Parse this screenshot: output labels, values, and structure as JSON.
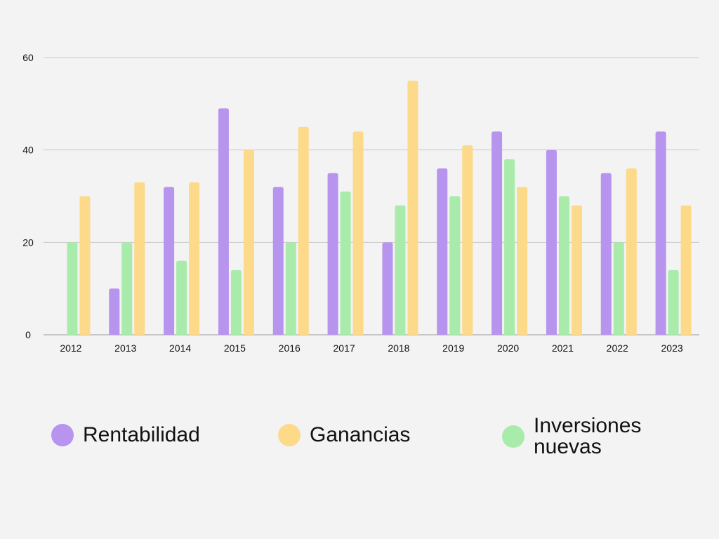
{
  "chart_data": {
    "type": "bar",
    "categories": [
      "2012",
      "2013",
      "2014",
      "2015",
      "2016",
      "2017",
      "2018",
      "2019",
      "2020",
      "2021",
      "2022",
      "2023"
    ],
    "series": [
      {
        "name": "Rentabilidad",
        "color": "#b794ee",
        "values": [
          0,
          10,
          32,
          49,
          32,
          35,
          20,
          36,
          44,
          40,
          35,
          44
        ]
      },
      {
        "name": "Inversiones nuevas",
        "color": "#a8ebaa",
        "values": [
          20,
          20,
          16,
          14,
          20,
          31,
          28,
          30,
          38,
          30,
          20,
          14
        ]
      },
      {
        "name": "Ganancias",
        "color": "#fdd98a",
        "values": [
          30,
          33,
          33,
          40,
          45,
          44,
          55,
          41,
          32,
          28,
          36,
          28
        ]
      }
    ],
    "ylim": [
      0,
      60
    ],
    "yticks": [
      "0",
      "20",
      "40",
      "60"
    ],
    "grid": true,
    "legend_position": "bottom",
    "title": "",
    "xlabel": "",
    "ylabel": ""
  },
  "legend": [
    {
      "label": "Rentabilidad",
      "color": "#b794ee"
    },
    {
      "label": "Ganancias",
      "color": "#fdd98a"
    },
    {
      "label": "Inversiones nuevas",
      "color": "#a8ebaa"
    }
  ]
}
